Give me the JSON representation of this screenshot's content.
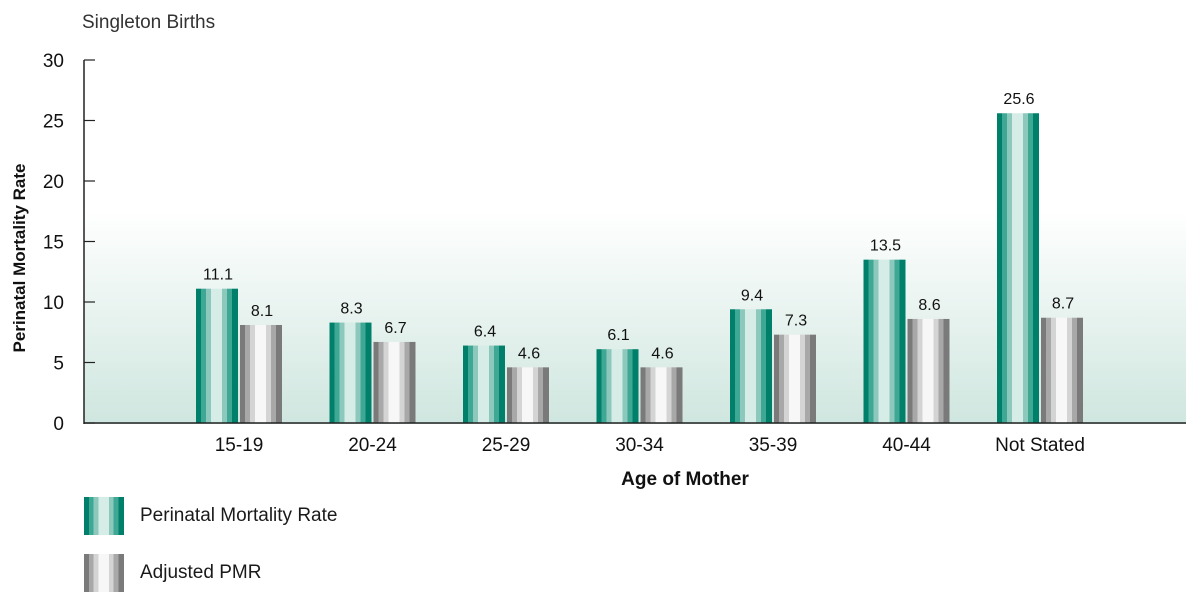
{
  "subtitle": "Singleton Births",
  "legend": [
    {
      "label": "Perinatal Mortality Rate",
      "swatch": "teal"
    },
    {
      "label": "Adjusted PMR",
      "swatch": "grey"
    }
  ],
  "colors": {
    "teal_dark": "#00806b",
    "teal_mid": "#3fa894",
    "teal_light": "#cfe9e2",
    "grey_dark": "#7a7a7a",
    "grey_mid": "#a8a8a8",
    "grey_light": "#f2f2f2",
    "background_band": "#cfe6df"
  },
  "chart_data": {
    "type": "bar",
    "xlabel": "Age of Mother",
    "ylabel": "Perinatal Mortality Rate",
    "ylim": [
      0,
      30
    ],
    "yticks": [
      0,
      5,
      10,
      15,
      20,
      25,
      30
    ],
    "categories": [
      "15-19",
      "20-24",
      "25-29",
      "30-34",
      "35-39",
      "40-44",
      "Not Stated"
    ],
    "series": [
      {
        "name": "Perinatal Mortality Rate",
        "values": [
          11.1,
          8.3,
          6.4,
          6.1,
          9.4,
          13.5,
          25.6
        ]
      },
      {
        "name": "Adjusted PMR",
        "values": [
          8.1,
          6.7,
          4.6,
          4.6,
          7.3,
          8.6,
          8.7
        ]
      }
    ],
    "data_labels": [
      [
        "11.1",
        "8.3",
        "6.4",
        "6.1",
        "9.4",
        "13.5",
        "25.6"
      ],
      [
        "8.1",
        "6.7",
        "4.6",
        "4.6",
        "7.3",
        "8.6",
        "8.7"
      ]
    ],
    "grid": false,
    "legend_position": "bottom-left"
  }
}
